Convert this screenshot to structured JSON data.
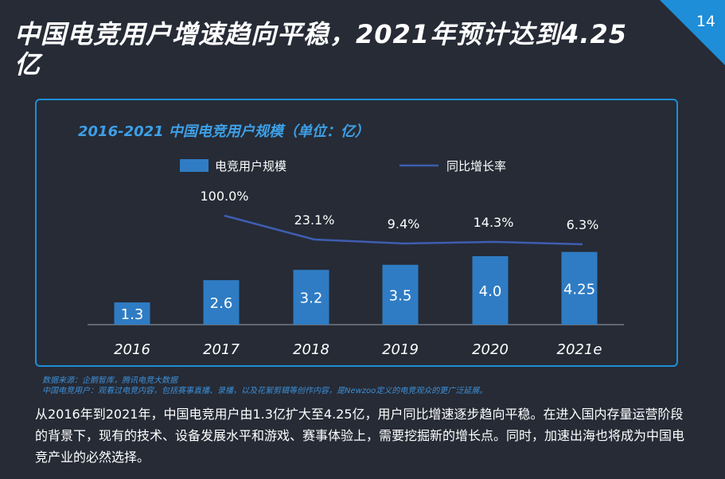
{
  "page": {
    "number": "14",
    "title": "中国电竞用户增速趋向平稳，2021年预计达到4.25亿"
  },
  "chart_data": {
    "type": "bar",
    "title": "2016-2021 中国电竞用户规模（单位：亿）",
    "categories": [
      "2016",
      "2017",
      "2018",
      "2019",
      "2020",
      "2021e"
    ],
    "series": [
      {
        "name": "电竞用户规模",
        "type": "bar",
        "values": [
          1.3,
          2.6,
          3.2,
          3.5,
          4.0,
          4.25
        ],
        "labels": [
          "1.3",
          "2.6",
          "3.2",
          "3.5",
          "4.0",
          "4.25"
        ],
        "color": "#2f7cc4"
      },
      {
        "name": "同比增长率",
        "type": "line",
        "values": [
          null,
          100.0,
          23.1,
          9.4,
          14.3,
          6.3
        ],
        "labels": [
          "",
          "100.0%",
          "23.1%",
          "9.4%",
          "14.3%",
          "6.3%"
        ],
        "color": "#3f5db0"
      }
    ],
    "legend_position": "top",
    "grid": false
  },
  "source": {
    "line1": "数据来源：企鹅智库，腾讯电竞大数据",
    "line2": "中国电竞用户：观看过电竞内容，包括赛事直播、录播，以及花絮剪辑等创作内容，是Newzoo定义的电竞观众的更广泛延展。"
  },
  "summary": "从2016年到2021年，中国电竞用户由1.3亿扩大至4.25亿，用户同比增速逐步趋向平稳。在进入国内存量运营阶段的背景下，现有的技术、设备发展水平和游戏、赛事体验上，需要挖掘新的增长点。同时，加速出海也将成为中国电竞产业的必然选择。",
  "colors": {
    "background": "#262b36",
    "accent": "#1e8ed8",
    "bar": "#2f7cc4",
    "line": "#3f5db0"
  }
}
